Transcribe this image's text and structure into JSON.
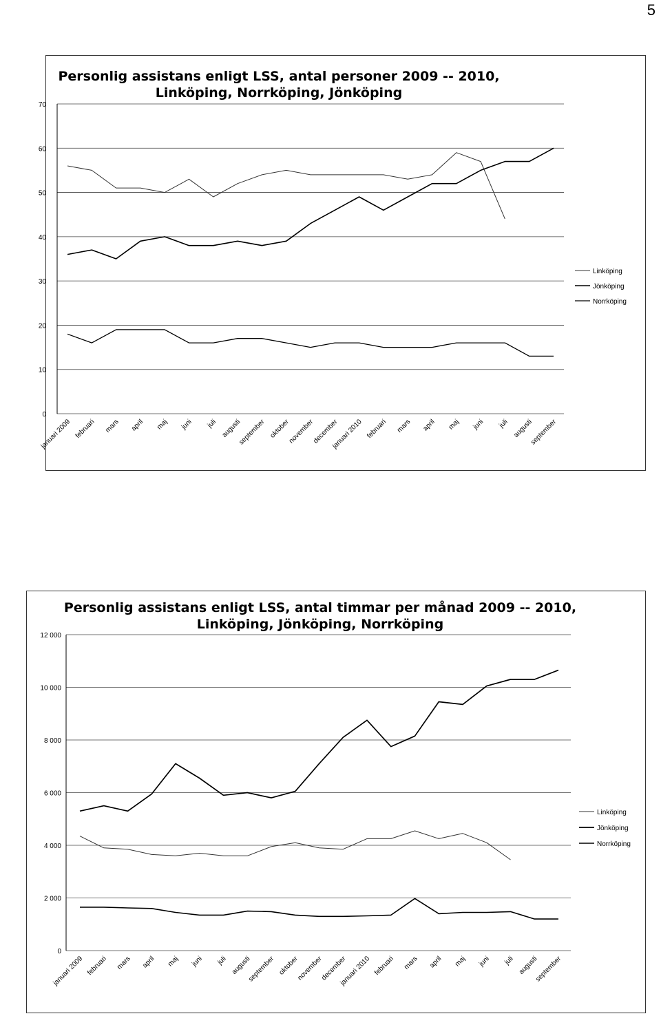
{
  "page": {
    "number": "5"
  },
  "chart_data": [
    {
      "type": "line",
      "title_lines": [
        "Personlig assistans enligt LSS, antal personer 2009 -- 2010,",
        "Linköping, Norrköping, Jönköping"
      ],
      "categories": [
        "januari 2009",
        "februari",
        "mars",
        "april",
        "maj",
        "juni",
        "juli",
        "augusti",
        "september",
        "oktober",
        "november",
        "december",
        "januari 2010",
        "februari",
        "mars",
        "april",
        "maj",
        "juni",
        "juli",
        "augusti",
        "september"
      ],
      "yticks": [
        "0",
        "10",
        "20",
        "30",
        "40",
        "50",
        "60",
        "70"
      ],
      "ylim": [
        0,
        70
      ],
      "grid": true,
      "legend_position": "right",
      "series": [
        {
          "name": "Linköping",
          "color": "#333333",
          "values": [
            56,
            55,
            51,
            51,
            50,
            53,
            49,
            52,
            54,
            55,
            54,
            54,
            54,
            54,
            53,
            54,
            59,
            57,
            44,
            null,
            null
          ]
        },
        {
          "name": "Jönköping",
          "color": "#000000",
          "values": [
            36,
            37,
            35,
            39,
            40,
            38,
            38,
            39,
            38,
            39,
            43,
            46,
            49,
            46,
            49,
            52,
            52,
            55,
            57,
            57,
            60
          ]
        },
        {
          "name": "Norrköping",
          "color": "#000000",
          "values": [
            18,
            16,
            19,
            19,
            19,
            16,
            16,
            17,
            17,
            16,
            15,
            16,
            16,
            15,
            15,
            15,
            16,
            16,
            16,
            13,
            13
          ]
        }
      ]
    },
    {
      "type": "line",
      "title_lines": [
        "Personlig assistans enligt LSS, antal timmar per månad 2009 -- 2010,",
        "Linköping, Jönköping, Norrköping"
      ],
      "categories": [
        "januari 2009",
        "februari",
        "mars",
        "april",
        "maj",
        "juni",
        "juli",
        "augusti",
        "september",
        "oktober",
        "november",
        "december",
        "januari 2010",
        "februari",
        "mars",
        "april",
        "maj",
        "juni",
        "juli",
        "augusti",
        "september"
      ],
      "yticks": [
        "0",
        "2 000",
        "4 000",
        "6 000",
        "8 000",
        "10 000",
        "12 000"
      ],
      "ylim": [
        0,
        12000
      ],
      "grid": true,
      "legend_position": "right",
      "series": [
        {
          "name": "Linköping",
          "color": "#333333",
          "values": [
            4350,
            3900,
            3850,
            3650,
            3600,
            3700,
            3600,
            3600,
            3950,
            4100,
            3900,
            3850,
            4250,
            4250,
            4550,
            4250,
            4450,
            4100,
            3450,
            null,
            null
          ]
        },
        {
          "name": "Jönköping",
          "color": "#000000",
          "values": [
            5300,
            5500,
            5300,
            5950,
            7100,
            6550,
            5900,
            6000,
            5800,
            6050,
            7100,
            8100,
            8750,
            7750,
            8150,
            9450,
            9350,
            10050,
            10300,
            10300,
            10650
          ]
        },
        {
          "name": "Norrköping",
          "color": "#000000",
          "values": [
            1650,
            1650,
            1620,
            1600,
            1450,
            1350,
            1350,
            1500,
            1480,
            1350,
            1300,
            1300,
            1320,
            1350,
            1980,
            1400,
            1450,
            1450,
            1480,
            1200,
            1200
          ]
        }
      ]
    }
  ]
}
